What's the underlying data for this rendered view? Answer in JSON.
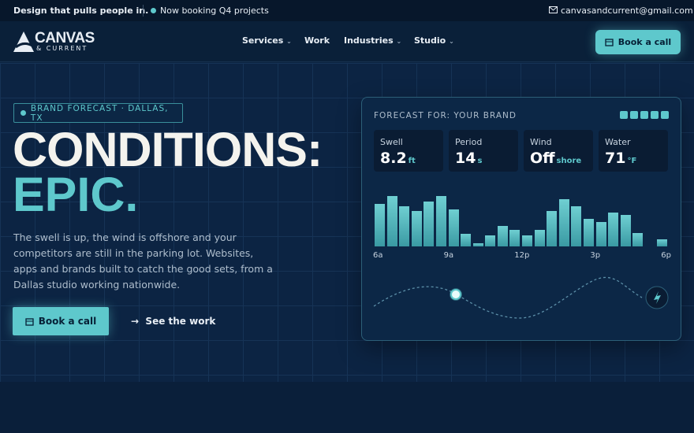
{
  "topbar": {
    "tagline": "Design that pulls people in.",
    "status": "Now booking Q4 projects",
    "email": "canvasandcurrent@gmail.com"
  },
  "nav": {
    "logo": {
      "name": "CANVAS",
      "sub": "& CURRENT"
    },
    "links": [
      "Services",
      "Work",
      "Industries",
      "Studio"
    ],
    "cta": "Book a call"
  },
  "hero": {
    "badge": "BRAND FORECAST · DALLAS, TX",
    "title_line1": "CONDITIONS:",
    "title_line2": "EPIC.",
    "body": "The swell is up, the wind is offshore and your competitors are still in the parking lot. Websites, apps and brands built to catch the good sets, from a Dallas studio working nationwide.",
    "primary_cta": "Book a call",
    "secondary_cta": "See the work"
  },
  "forecast": {
    "title": "FORECAST FOR: YOUR BRAND",
    "stats": [
      {
        "label": "Swell",
        "value": "8.2",
        "unit": "ft"
      },
      {
        "label": "Period",
        "value": "14",
        "unit": "s"
      },
      {
        "label": "Wind",
        "value": "Off",
        "unit": "shore"
      },
      {
        "label": "Water",
        "value": "71",
        "unit": "°F"
      }
    ],
    "chart_data": {
      "type": "bar",
      "values": [
        54,
        64,
        51,
        45,
        57,
        64,
        47,
        16,
        4,
        14,
        26,
        21,
        14,
        21,
        45,
        60,
        51,
        35,
        31,
        43,
        40,
        17,
        0,
        9
      ],
      "color": "#5ec8cc",
      "axis_labels": [
        "6a",
        "9a",
        "12p",
        "3p",
        "6p"
      ]
    }
  }
}
